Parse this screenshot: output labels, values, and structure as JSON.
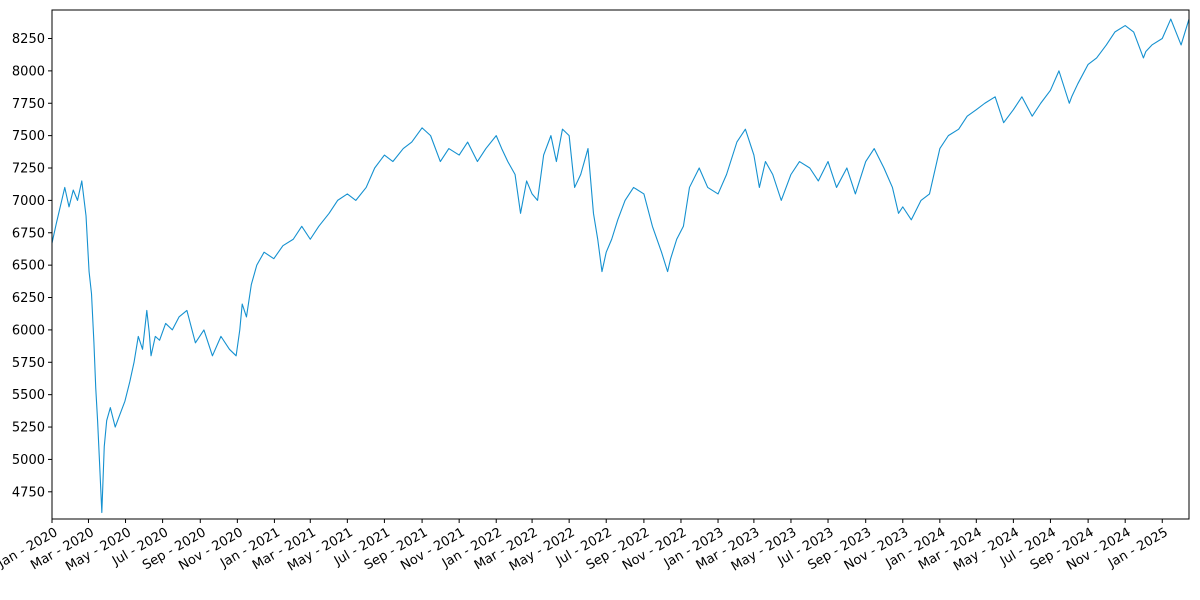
{
  "chart_data": {
    "type": "line",
    "title": "",
    "xlabel": "",
    "ylabel": "",
    "grid": false,
    "line_color": "#1591d0",
    "x_range": [
      "2020-01-01",
      "2025-02-14"
    ],
    "ylim": [
      4540,
      8470
    ],
    "y_ticks": [
      4750,
      5000,
      5250,
      5500,
      5750,
      6000,
      6250,
      6500,
      6750,
      7000,
      7250,
      7500,
      7750,
      8000,
      8250
    ],
    "y_tick_labels": [
      "4750",
      "5000",
      "5250",
      "5500",
      "5750",
      "6000",
      "6250",
      "6500",
      "6750",
      "7000",
      "7250",
      "7500",
      "7750",
      "8000",
      "8250"
    ],
    "x_ticks": [
      "2020-01-01",
      "2020-03-01",
      "2020-05-01",
      "2020-07-01",
      "2020-09-01",
      "2020-11-01",
      "2021-01-01",
      "2021-03-01",
      "2021-05-01",
      "2021-07-01",
      "2021-09-01",
      "2021-11-01",
      "2022-01-01",
      "2022-03-01",
      "2022-05-01",
      "2022-07-01",
      "2022-09-01",
      "2022-11-01",
      "2023-01-01",
      "2023-03-01",
      "2023-05-01",
      "2023-07-01",
      "2023-09-01",
      "2023-11-01",
      "2024-01-01",
      "2024-03-01",
      "2024-05-01",
      "2024-07-01",
      "2024-09-01",
      "2024-11-01",
      "2025-01-01"
    ],
    "x_tick_labels": [
      "Jan - 2020",
      "Mar - 2020",
      "May - 2020",
      "Jul - 2020",
      "Sep - 2020",
      "Nov - 2020",
      "Jan - 2021",
      "Mar - 2021",
      "May - 2021",
      "Jul - 2021",
      "Sep - 2021",
      "Nov - 2021",
      "Jan - 2022",
      "Mar - 2022",
      "May - 2022",
      "Jul - 2022",
      "Sep - 2022",
      "Nov - 2022",
      "Jan - 2023",
      "Mar - 2023",
      "May - 2023",
      "Jul - 2023",
      "Sep - 2023",
      "Nov - 2023",
      "Jan - 2024",
      "Mar - 2024",
      "May - 2024",
      "Jul - 2024",
      "Sep - 2024",
      "Nov - 2024",
      "Jan - 2025"
    ],
    "series": [
      {
        "x": [
          "2020-01-01",
          "2020-01-08",
          "2020-01-15",
          "2020-01-22",
          "2020-01-29",
          "2020-02-05",
          "2020-02-12",
          "2020-02-19",
          "2020-02-26",
          "2020-03-02",
          "2020-03-06",
          "2020-03-10",
          "2020-03-13",
          "2020-03-16",
          "2020-03-19",
          "2020-03-23",
          "2020-03-27",
          "2020-03-31",
          "2020-04-06",
          "2020-04-14",
          "2020-04-22",
          "2020-04-30",
          "2020-05-08",
          "2020-05-15",
          "2020-05-22",
          "2020-05-29",
          "2020-06-05",
          "2020-06-09",
          "2020-06-12",
          "2020-06-19",
          "2020-06-26",
          "2020-07-06",
          "2020-07-17",
          "2020-07-28",
          "2020-08-10",
          "2020-08-24",
          "2020-09-07",
          "2020-09-21",
          "2020-10-05",
          "2020-10-19",
          "2020-10-30",
          "2020-11-05",
          "2020-11-09",
          "2020-11-16",
          "2020-11-24",
          "2020-12-03",
          "2020-12-15",
          "2020-12-31",
          "2021-01-15",
          "2021-02-01",
          "2021-02-15",
          "2021-03-01",
          "2021-03-15",
          "2021-04-01",
          "2021-04-15",
          "2021-05-01",
          "2021-05-15",
          "2021-06-01",
          "2021-06-15",
          "2021-07-01",
          "2021-07-15",
          "2021-08-01",
          "2021-08-15",
          "2021-09-01",
          "2021-09-15",
          "2021-10-01",
          "2021-10-15",
          "2021-11-01",
          "2021-11-15",
          "2021-12-01",
          "2021-12-15",
          "2022-01-01",
          "2022-01-10",
          "2022-01-20",
          "2022-02-01",
          "2022-02-10",
          "2022-02-20",
          "2022-03-01",
          "2022-03-10",
          "2022-03-20",
          "2022-04-01",
          "2022-04-10",
          "2022-04-20",
          "2022-05-01",
          "2022-05-10",
          "2022-05-20",
          "2022-06-01",
          "2022-06-10",
          "2022-06-17",
          "2022-06-24",
          "2022-07-01",
          "2022-07-10",
          "2022-07-20",
          "2022-08-01",
          "2022-08-15",
          "2022-09-01",
          "2022-09-15",
          "2022-09-30",
          "2022-10-10",
          "2022-10-15",
          "2022-10-25",
          "2022-11-05",
          "2022-11-15",
          "2022-12-01",
          "2022-12-15",
          "2023-01-01",
          "2023-01-15",
          "2023-02-01",
          "2023-02-15",
          "2023-03-01",
          "2023-03-10",
          "2023-03-20",
          "2023-04-01",
          "2023-04-15",
          "2023-05-01",
          "2023-05-15",
          "2023-06-01",
          "2023-06-15",
          "2023-07-01",
          "2023-07-15",
          "2023-08-01",
          "2023-08-15",
          "2023-09-01",
          "2023-09-15",
          "2023-10-01",
          "2023-10-15",
          "2023-10-25",
          "2023-11-01",
          "2023-11-15",
          "2023-12-01",
          "2023-12-15",
          "2024-01-01",
          "2024-01-15",
          "2024-02-01",
          "2024-02-15",
          "2024-03-01",
          "2024-03-15",
          "2024-04-01",
          "2024-04-15",
          "2024-05-01",
          "2024-05-15",
          "2024-06-01",
          "2024-06-15",
          "2024-07-01",
          "2024-07-15",
          "2024-08-01",
          "2024-08-05",
          "2024-08-15",
          "2024-09-01",
          "2024-09-15",
          "2024-10-01",
          "2024-10-15",
          "2024-11-01",
          "2024-11-15",
          "2024-12-01",
          "2024-12-05",
          "2024-12-15",
          "2025-01-01",
          "2025-01-15",
          "2025-02-01",
          "2025-02-14"
        ],
        "values": [
          6670,
          6820,
          6960,
          7100,
          6950,
          7080,
          7000,
          7150,
          6880,
          6450,
          6280,
          5900,
          5550,
          5300,
          5000,
          4590,
          5100,
          5300,
          5400,
          5250,
          5350,
          5450,
          5600,
          5750,
          5950,
          5850,
          6150,
          5980,
          5800,
          5950,
          5920,
          6050,
          6000,
          6100,
          6150,
          5900,
          6000,
          5800,
          5950,
          5850,
          5800,
          6000,
          6200,
          6100,
          6350,
          6500,
          6600,
          6550,
          6650,
          6700,
          6800,
          6700,
          6800,
          6900,
          7000,
          7050,
          7000,
          7100,
          7250,
          7350,
          7300,
          7400,
          7450,
          7560,
          7500,
          7300,
          7400,
          7350,
          7450,
          7300,
          7400,
          7500,
          7400,
          7300,
          7200,
          6900,
          7150,
          7050,
          7000,
          7350,
          7500,
          7300,
          7550,
          7500,
          7100,
          7200,
          7400,
          6900,
          6700,
          6450,
          6600,
          6700,
          6850,
          7000,
          7100,
          7050,
          6800,
          6600,
          6450,
          6550,
          6700,
          6800,
          7100,
          7250,
          7100,
          7050,
          7200,
          7450,
          7550,
          7350,
          7100,
          7300,
          7200,
          7000,
          7200,
          7300,
          7250,
          7150,
          7300,
          7100,
          7250,
          7050,
          7300,
          7400,
          7250,
          7100,
          6900,
          6950,
          6850,
          7000,
          7050,
          7400,
          7500,
          7550,
          7650,
          7700,
          7750,
          7800,
          7600,
          7700,
          7800,
          7650,
          7750,
          7850,
          8000,
          7750,
          7800,
          7900,
          8050,
          8100,
          8200,
          8300,
          8350,
          8300,
          8100,
          8150,
          8200,
          8250,
          8400,
          8200,
          8400
        ]
      }
    ]
  }
}
